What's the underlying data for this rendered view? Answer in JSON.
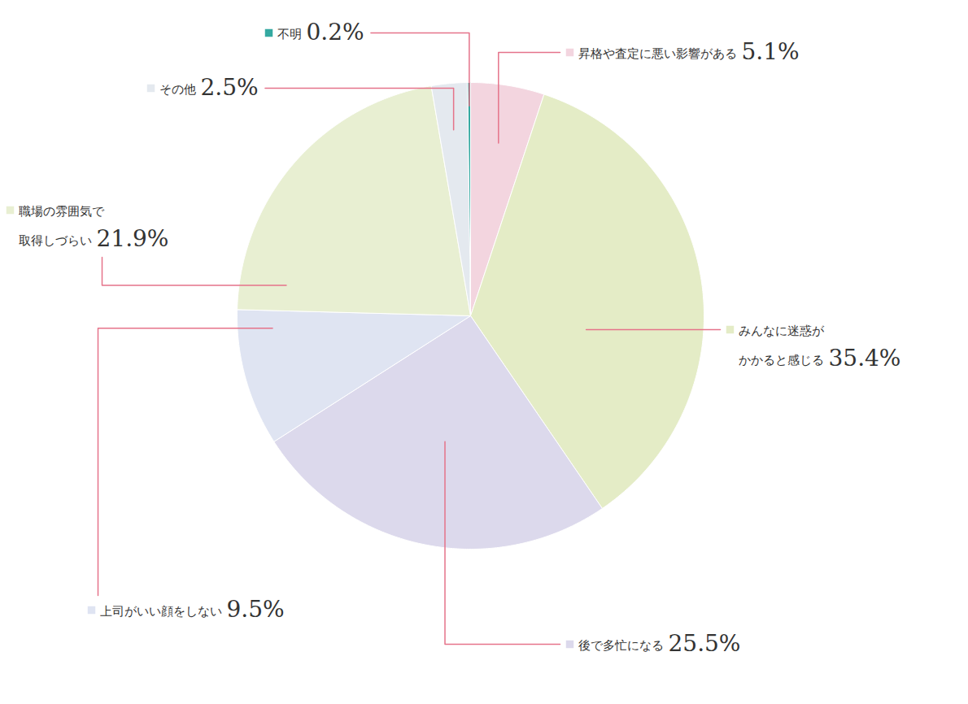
{
  "chart_data": {
    "type": "pie",
    "categories": [
      "昇格や査定に悪い影響がある",
      "みんなに迷惑が\nかかると感じる",
      "後で多忙になる",
      "上司がいい顔をしない",
      "職場の雰囲気で\n取得しづらい",
      "その他",
      "不明"
    ],
    "values": [
      5.1,
      35.4,
      25.5,
      9.5,
      21.9,
      2.5,
      0.2
    ],
    "value_labels": [
      "5.1%",
      "35.4%",
      "25.5%",
      "9.5%",
      "21.9%",
      "2.5%",
      "0.2%"
    ],
    "colors": [
      "#f3d5df",
      "#e4ecc6",
      "#dcd9ec",
      "#dfe4f2",
      "#e8efd2",
      "#e4e9ef",
      "#35a9a1"
    ],
    "data_labels": true
  }
}
